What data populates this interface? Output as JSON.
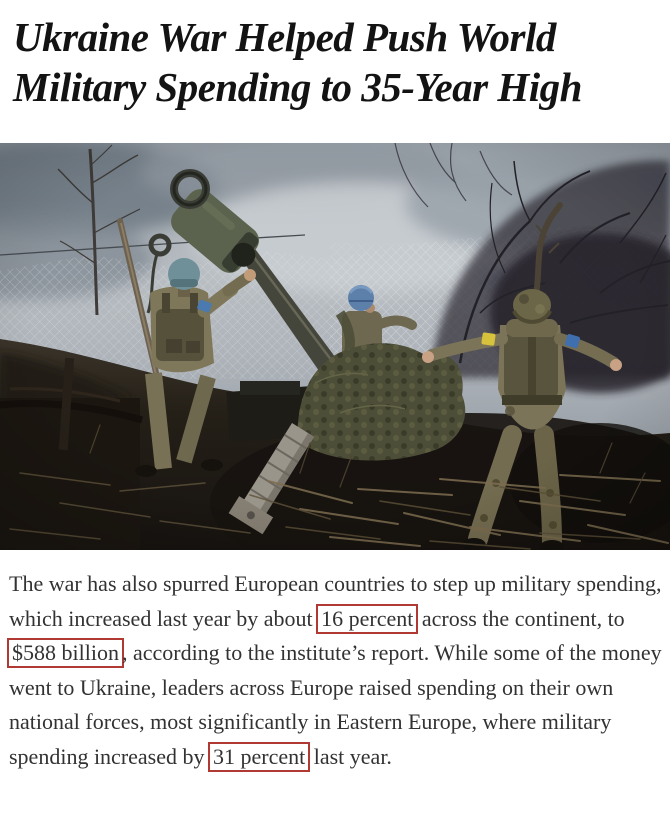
{
  "headline": {
    "text": "Ukraine War Helped Push World Military Spending to 35-Year High"
  },
  "photo": {
    "description": "Soldiers in camouflage raise the barrel of a howitzer draped in netting beneath bare trees and an overcast sky",
    "colors": {
      "sky": "#a9b0b7",
      "ground": "#221d15",
      "camouflage": "#7c7458",
      "netting": "#4d4e38",
      "helmet_teal": "#6f9099",
      "helmet_blue": "#5d80ab",
      "armband_yellow": "#d6c23c",
      "armband_blue": "#3f6fae"
    }
  },
  "article": {
    "text_color": "#323232",
    "highlight_box_color": "#b03a33",
    "paragraph_segments": [
      {
        "text": "The war has also spurred European countries to step up military spending, which increased last year by about ",
        "boxed": false
      },
      {
        "text": "16 percent",
        "boxed": true
      },
      {
        "text": " across the continent, to ",
        "boxed": false
      },
      {
        "text": "$588 billion",
        "boxed": true
      },
      {
        "text": ", according to the institute’s report. While some of the money went to Ukraine, leaders across Europe raised spending on their own national forces, most significantly in Eastern Europe, where military spending increased by ",
        "boxed": false
      },
      {
        "text": "31 percent",
        "boxed": true
      },
      {
        "text": " last year.",
        "boxed": false
      }
    ]
  }
}
